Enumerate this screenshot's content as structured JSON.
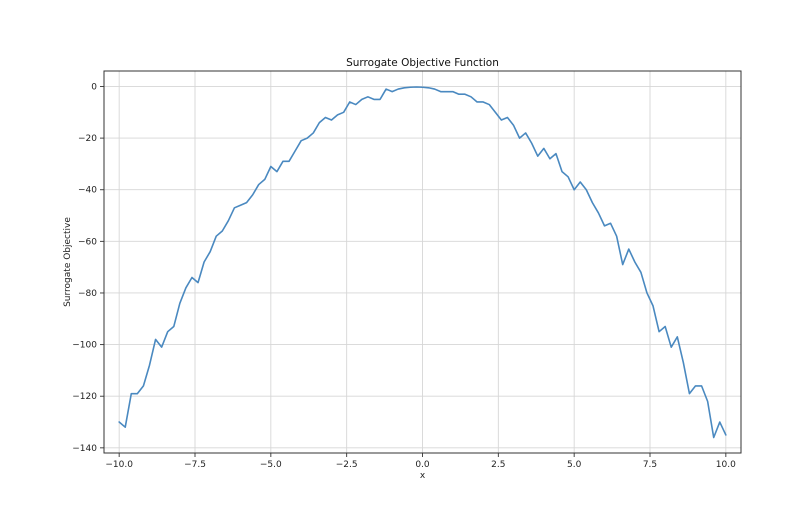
{
  "chart_data": {
    "type": "line",
    "title": "Surrogate Objective Function",
    "xlabel": "x",
    "ylabel": "Surrogate Objective",
    "xlim": [
      -10.5,
      10.5
    ],
    "ylim": [
      -142,
      6
    ],
    "xticks": [
      -10.0,
      -7.5,
      -5.0,
      -2.5,
      0.0,
      2.5,
      5.0,
      7.5,
      10.0
    ],
    "xtick_labels": [
      "−10.0",
      "−7.5",
      "−5.0",
      "−2.5",
      "0.0",
      "2.5",
      "5.0",
      "7.5",
      "10.0"
    ],
    "yticks": [
      0,
      -20,
      -40,
      -60,
      -80,
      -100,
      -120,
      -140
    ],
    "ytick_labels": [
      "0",
      "−20",
      "−40",
      "−60",
      "−80",
      "−100",
      "−120",
      "−140"
    ],
    "grid": true,
    "line_color": "#4a89c0",
    "series": [
      {
        "x": [
          -10.0,
          -9.8,
          -9.6,
          -9.4,
          -9.2,
          -9.0,
          -8.8,
          -8.6,
          -8.4,
          -8.2,
          -8.0,
          -7.8,
          -7.6,
          -7.4,
          -7.2,
          -7.0,
          -6.8,
          -6.6,
          -6.4,
          -6.2,
          -6.0,
          -5.8,
          -5.6,
          -5.4,
          -5.2,
          -5.0,
          -4.8,
          -4.6,
          -4.4,
          -4.2,
          -4.0,
          -3.8,
          -3.6,
          -3.4,
          -3.2,
          -3.0,
          -2.8,
          -2.6,
          -2.4,
          -2.2,
          -2.0,
          -1.8,
          -1.6,
          -1.4,
          -1.2,
          -1.0,
          -0.8,
          -0.6,
          -0.4,
          -0.2,
          0.0,
          0.2,
          0.4,
          0.6,
          0.8,
          1.0,
          1.2,
          1.4,
          1.6,
          1.8,
          2.0,
          2.2,
          2.4,
          2.6,
          2.8,
          3.0,
          3.2,
          3.4,
          3.6,
          3.8,
          4.0,
          4.2,
          4.4,
          4.6,
          4.8,
          5.0,
          5.2,
          5.4,
          5.6,
          5.8,
          6.0,
          6.2,
          6.4,
          6.6,
          6.8,
          7.0,
          7.2,
          7.4,
          7.6,
          7.8,
          8.0,
          8.2,
          8.4,
          8.6,
          8.8,
          9.0,
          9.2,
          9.4,
          9.6,
          9.8,
          10.0
        ],
        "values": [
          -130,
          -132,
          -119,
          -119,
          -116,
          -108,
          -98,
          -101,
          -95,
          -93,
          -84,
          -78,
          -74,
          -76,
          -68,
          -64,
          -58,
          -56,
          -52,
          -47,
          -46,
          -45,
          -42,
          -38,
          -36,
          -31,
          -33,
          -29,
          -29,
          -25,
          -21,
          -20,
          -18,
          -14,
          -12,
          -13,
          -11,
          -10,
          -6,
          -7,
          -5,
          -4,
          -5,
          -5,
          -1,
          -2,
          -1,
          -0.5,
          -0.3,
          -0.2,
          -0.3,
          -0.5,
          -1,
          -2,
          -2,
          -2,
          -3,
          -3,
          -4,
          -6,
          -6,
          -7,
          -10,
          -13,
          -12,
          -15,
          -20,
          -18,
          -22,
          -27,
          -24,
          -28,
          -26,
          -33,
          -35,
          -40,
          -37,
          -40,
          -45,
          -49,
          -54,
          -53,
          -58,
          -69,
          -63,
          -68,
          -72,
          -80,
          -85,
          -95,
          -93,
          -101,
          -97,
          -107,
          -119,
          -116,
          -116,
          -122,
          -136,
          -130,
          -135
        ]
      }
    ]
  }
}
